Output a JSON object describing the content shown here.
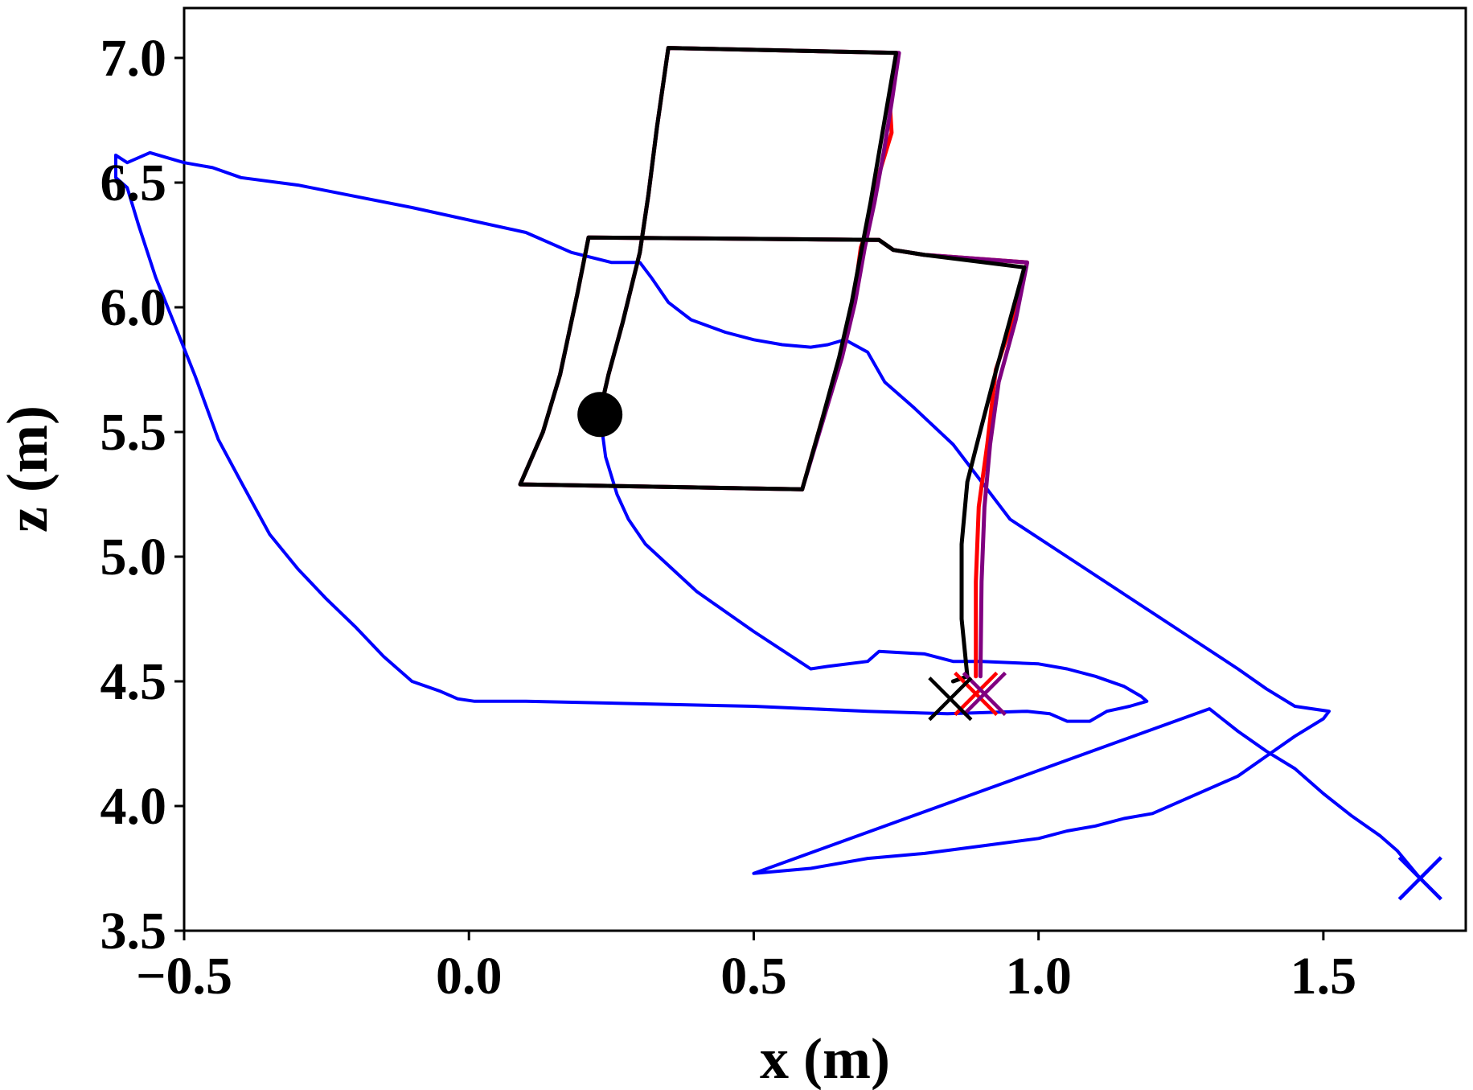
{
  "chart_data": {
    "type": "line",
    "title": "",
    "xlabel": "x (m)",
    "ylabel": "z (m)",
    "xlim": [
      -0.5,
      1.75
    ],
    "ylim": [
      3.5,
      7.2
    ],
    "grid": false,
    "legend": "none",
    "x_ticks": [
      -0.5,
      0.0,
      0.5,
      1.0,
      1.5
    ],
    "x_tick_labels": [
      "−0.5",
      "0.0",
      "0.5",
      "1.0",
      "1.5"
    ],
    "y_ticks": [
      3.5,
      4.0,
      4.5,
      5.0,
      5.5,
      6.0,
      6.5,
      7.0
    ],
    "y_tick_labels": [
      "3.5",
      "4.0",
      "4.5",
      "5.0",
      "5.5",
      "6.0",
      "6.5",
      "7.0"
    ],
    "start_marker": {
      "x": 0.23,
      "z": 5.57,
      "color": "#000000"
    },
    "series": [
      {
        "color": "#ff0000",
        "end_marker": {
          "x": 0.89,
          "z": 4.45
        },
        "points": [
          [
            0.235,
            5.63
          ],
          [
            0.245,
            5.73
          ],
          [
            0.27,
            5.94
          ],
          [
            0.3,
            6.22
          ],
          [
            0.315,
            6.45
          ],
          [
            0.33,
            6.72
          ],
          [
            0.35,
            7.04
          ],
          [
            0.752,
            7.02
          ],
          [
            0.738,
            6.85
          ],
          [
            0.742,
            6.7
          ],
          [
            0.722,
            6.55
          ],
          [
            0.705,
            6.35
          ],
          [
            0.688,
            6.24
          ],
          [
            0.675,
            6.02
          ],
          [
            0.652,
            5.8
          ],
          [
            0.62,
            5.55
          ],
          [
            0.585,
            5.27
          ],
          [
            0.09,
            5.29
          ],
          [
            0.13,
            5.5
          ],
          [
            0.16,
            5.73
          ],
          [
            0.19,
            6.05
          ],
          [
            0.21,
            6.28
          ],
          [
            0.72,
            6.27
          ],
          [
            0.745,
            6.23
          ],
          [
            0.8,
            6.21
          ],
          [
            0.98,
            6.18
          ],
          [
            0.955,
            5.95
          ],
          [
            0.925,
            5.75
          ],
          [
            0.91,
            5.45
          ],
          [
            0.895,
            5.2
          ],
          [
            0.89,
            4.9
          ],
          [
            0.89,
            4.52
          ]
        ]
      },
      {
        "color": "#800080",
        "end_marker": {
          "x": 0.905,
          "z": 4.45
        },
        "points": [
          [
            0.235,
            5.63
          ],
          [
            0.245,
            5.73
          ],
          [
            0.27,
            5.94
          ],
          [
            0.3,
            6.22
          ],
          [
            0.315,
            6.45
          ],
          [
            0.33,
            6.72
          ],
          [
            0.35,
            7.04
          ],
          [
            0.755,
            7.02
          ],
          [
            0.742,
            6.82
          ],
          [
            0.728,
            6.62
          ],
          [
            0.712,
            6.42
          ],
          [
            0.695,
            6.24
          ],
          [
            0.678,
            6.02
          ],
          [
            0.655,
            5.8
          ],
          [
            0.622,
            5.55
          ],
          [
            0.585,
            5.27
          ],
          [
            0.09,
            5.29
          ],
          [
            0.13,
            5.5
          ],
          [
            0.16,
            5.73
          ],
          [
            0.19,
            6.05
          ],
          [
            0.21,
            6.28
          ],
          [
            0.72,
            6.27
          ],
          [
            0.745,
            6.23
          ],
          [
            0.8,
            6.21
          ],
          [
            0.98,
            6.18
          ],
          [
            0.96,
            5.95
          ],
          [
            0.93,
            5.7
          ],
          [
            0.915,
            5.45
          ],
          [
            0.905,
            5.2
          ],
          [
            0.9,
            4.9
          ],
          [
            0.898,
            4.52
          ]
        ]
      },
      {
        "color": "#000000",
        "end_marker": {
          "x": 0.845,
          "z": 4.43
        },
        "points": [
          [
            0.235,
            5.63
          ],
          [
            0.245,
            5.73
          ],
          [
            0.27,
            5.94
          ],
          [
            0.3,
            6.22
          ],
          [
            0.315,
            6.45
          ],
          [
            0.33,
            6.72
          ],
          [
            0.35,
            7.04
          ],
          [
            0.75,
            7.02
          ],
          [
            0.735,
            6.82
          ],
          [
            0.72,
            6.62
          ],
          [
            0.705,
            6.42
          ],
          [
            0.69,
            6.24
          ],
          [
            0.672,
            6.02
          ],
          [
            0.65,
            5.8
          ],
          [
            0.62,
            5.55
          ],
          [
            0.585,
            5.27
          ],
          [
            0.09,
            5.29
          ],
          [
            0.13,
            5.5
          ],
          [
            0.16,
            5.73
          ],
          [
            0.19,
            6.05
          ],
          [
            0.21,
            6.28
          ],
          [
            0.72,
            6.27
          ],
          [
            0.745,
            6.23
          ],
          [
            0.8,
            6.21
          ],
          [
            0.975,
            6.16
          ],
          [
            0.95,
            5.95
          ],
          [
            0.92,
            5.7
          ],
          [
            0.895,
            5.48
          ],
          [
            0.875,
            5.3
          ],
          [
            0.865,
            5.05
          ],
          [
            0.865,
            4.75
          ],
          [
            0.875,
            4.52
          ],
          [
            0.85,
            4.5
          ]
        ]
      },
      {
        "color": "#0000ff",
        "end_marker": {
          "x": 1.67,
          "z": 3.71
        },
        "points": [
          [
            0.23,
            5.57
          ],
          [
            0.24,
            5.4
          ],
          [
            0.26,
            5.25
          ],
          [
            0.28,
            5.15
          ],
          [
            0.31,
            5.05
          ],
          [
            0.4,
            4.86
          ],
          [
            0.5,
            4.7
          ],
          [
            0.58,
            4.58
          ],
          [
            0.6,
            4.55
          ],
          [
            0.63,
            4.56
          ],
          [
            0.7,
            4.58
          ],
          [
            0.72,
            4.62
          ],
          [
            0.8,
            4.61
          ],
          [
            0.85,
            4.58
          ],
          [
            0.9,
            4.58
          ],
          [
            1.0,
            4.57
          ],
          [
            1.05,
            4.55
          ],
          [
            1.1,
            4.52
          ],
          [
            1.15,
            4.48
          ],
          [
            1.18,
            4.44
          ],
          [
            1.19,
            4.42
          ],
          [
            1.16,
            4.4
          ],
          [
            1.12,
            4.38
          ],
          [
            1.09,
            4.34
          ],
          [
            1.05,
            4.34
          ],
          [
            1.02,
            4.37
          ],
          [
            0.98,
            4.38
          ],
          [
            0.84,
            4.37
          ],
          [
            0.7,
            4.38
          ],
          [
            0.5,
            4.4
          ],
          [
            0.3,
            4.41
          ],
          [
            0.1,
            4.42
          ],
          [
            0.01,
            4.42
          ],
          [
            -0.02,
            4.43
          ],
          [
            -0.05,
            4.46
          ],
          [
            -0.1,
            4.5
          ],
          [
            -0.15,
            4.6
          ],
          [
            -0.2,
            4.72
          ],
          [
            -0.25,
            4.83
          ],
          [
            -0.3,
            4.95
          ],
          [
            -0.35,
            5.09
          ],
          [
            -0.4,
            5.3
          ],
          [
            -0.44,
            5.47
          ],
          [
            -0.48,
            5.72
          ],
          [
            -0.52,
            5.95
          ],
          [
            -0.55,
            6.12
          ],
          [
            -0.58,
            6.33
          ],
          [
            -0.6,
            6.48
          ],
          [
            -0.62,
            6.52
          ],
          [
            -0.62,
            6.61
          ],
          [
            -0.6,
            6.58
          ],
          [
            -0.56,
            6.62
          ],
          [
            -0.5,
            6.58
          ],
          [
            -0.45,
            6.56
          ],
          [
            -0.4,
            6.52
          ],
          [
            -0.3,
            6.49
          ],
          [
            -0.1,
            6.4
          ],
          [
            0.1,
            6.3
          ],
          [
            0.18,
            6.22
          ],
          [
            0.25,
            6.18
          ],
          [
            0.3,
            6.18
          ],
          [
            0.32,
            6.12
          ],
          [
            0.35,
            6.02
          ],
          [
            0.39,
            5.95
          ],
          [
            0.45,
            5.9
          ],
          [
            0.5,
            5.87
          ],
          [
            0.55,
            5.85
          ],
          [
            0.6,
            5.84
          ],
          [
            0.63,
            5.85
          ],
          [
            0.66,
            5.87
          ],
          [
            0.7,
            5.82
          ],
          [
            0.73,
            5.7
          ],
          [
            0.78,
            5.6
          ],
          [
            0.85,
            5.45
          ],
          [
            0.9,
            5.3
          ],
          [
            0.95,
            5.15
          ],
          [
            1.05,
            5.0
          ],
          [
            1.15,
            4.85
          ],
          [
            1.25,
            4.7
          ],
          [
            1.35,
            4.55
          ],
          [
            1.4,
            4.47
          ],
          [
            1.45,
            4.4
          ],
          [
            1.51,
            4.38
          ],
          [
            1.5,
            4.35
          ],
          [
            1.45,
            4.28
          ],
          [
            1.4,
            4.2
          ],
          [
            1.35,
            4.12
          ],
          [
            1.25,
            4.02
          ],
          [
            1.2,
            3.97
          ],
          [
            1.15,
            3.95
          ],
          [
            1.1,
            3.92
          ],
          [
            1.05,
            3.9
          ],
          [
            1.0,
            3.87
          ],
          [
            0.9,
            3.84
          ],
          [
            0.8,
            3.81
          ],
          [
            0.7,
            3.79
          ],
          [
            0.6,
            3.75
          ],
          [
            0.55,
            3.74
          ],
          [
            0.5,
            3.73
          ],
          [
            1.3,
            4.39
          ],
          [
            1.35,
            4.3
          ],
          [
            1.4,
            4.22
          ],
          [
            1.45,
            4.15
          ],
          [
            1.5,
            4.05
          ],
          [
            1.55,
            3.96
          ],
          [
            1.6,
            3.88
          ],
          [
            1.63,
            3.82
          ],
          [
            1.67,
            3.71
          ]
        ]
      }
    ]
  }
}
